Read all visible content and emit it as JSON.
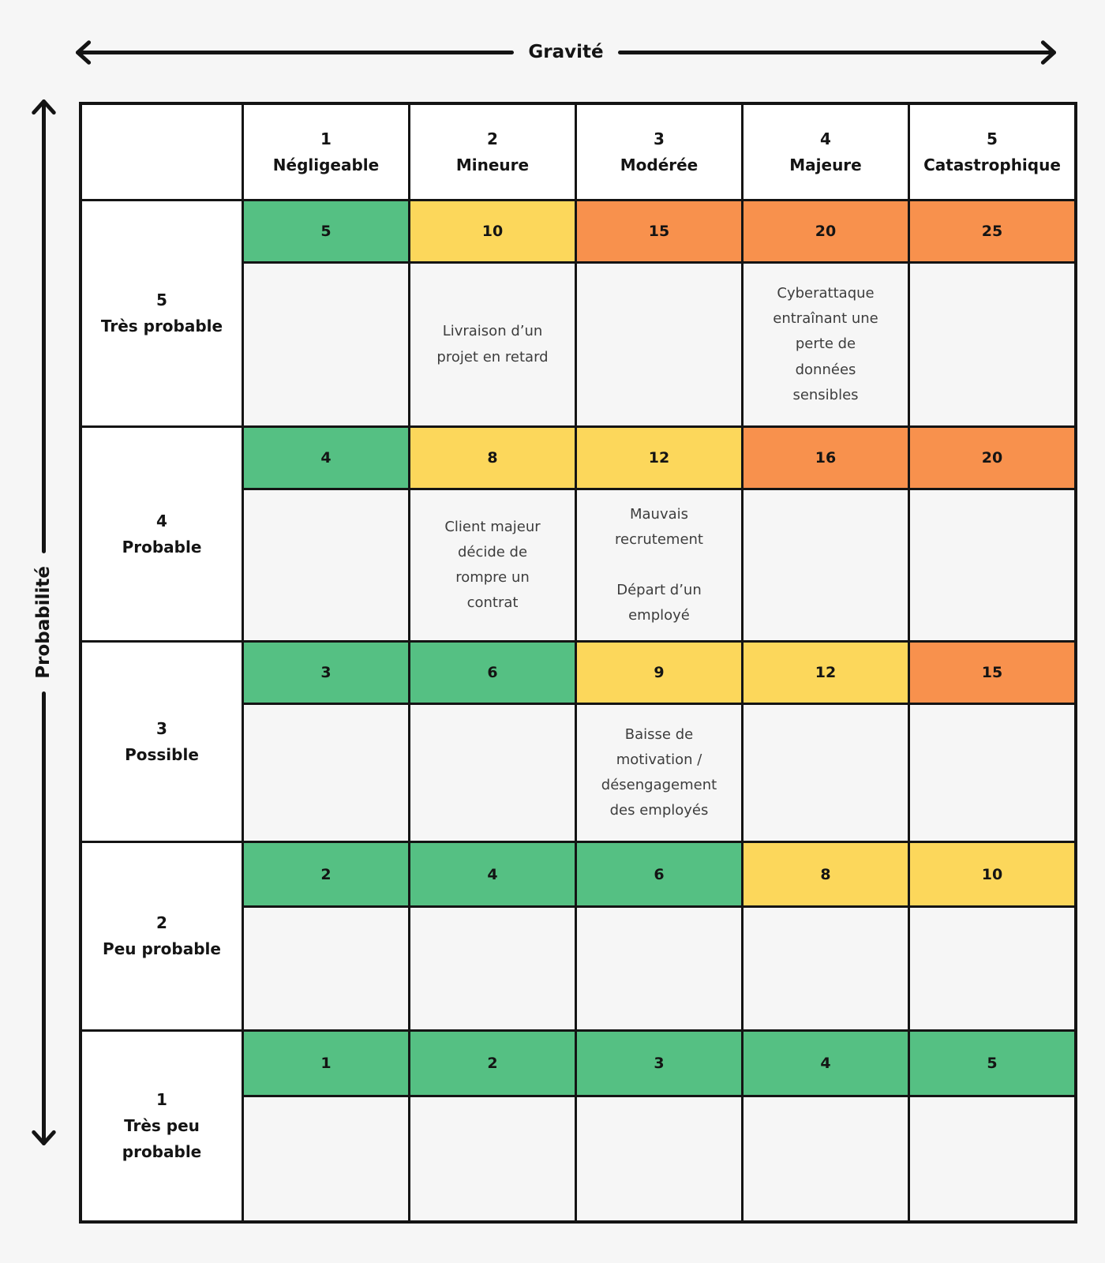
{
  "axes": {
    "x_label": "Gravité",
    "y_label": "Probabilité"
  },
  "colors": {
    "low": "#55C083",
    "medium": "#FCD75B",
    "high": "#F8914D",
    "header_bg": "#ffffff",
    "cell_bg": "#f6f6f6",
    "border": "#141414",
    "page_bg": "#f6f6f6"
  },
  "columns": [
    {
      "num": "1",
      "label": "Négligeable"
    },
    {
      "num": "2",
      "label": "Mineure"
    },
    {
      "num": "3",
      "label": "Modérée"
    },
    {
      "num": "4",
      "label": "Majeure"
    },
    {
      "num": "5",
      "label": "Catastrophique"
    }
  ],
  "rows": [
    {
      "num": "5",
      "label": "Très probable",
      "scores": [
        {
          "value": 5,
          "level": "green"
        },
        {
          "value": 10,
          "level": "yellow"
        },
        {
          "value": 15,
          "level": "orange"
        },
        {
          "value": 20,
          "level": "orange"
        },
        {
          "value": 25,
          "level": "orange"
        }
      ],
      "items": [
        [],
        [
          "Livraison d’un projet en retard"
        ],
        [],
        [
          "Cyberattaque entraînant une perte de données sensibles"
        ],
        []
      ]
    },
    {
      "num": "4",
      "label": "Probable",
      "scores": [
        {
          "value": 4,
          "level": "green"
        },
        {
          "value": 8,
          "level": "yellow"
        },
        {
          "value": 12,
          "level": "yellow"
        },
        {
          "value": 16,
          "level": "orange"
        },
        {
          "value": 20,
          "level": "orange"
        }
      ],
      "items": [
        [],
        [
          "Client majeur décide de rompre un contrat"
        ],
        [
          "Mauvais recrutement",
          "Départ d’un employé"
        ],
        [],
        []
      ]
    },
    {
      "num": "3",
      "label": "Possible",
      "scores": [
        {
          "value": 3,
          "level": "green"
        },
        {
          "value": 6,
          "level": "green"
        },
        {
          "value": 9,
          "level": "yellow"
        },
        {
          "value": 12,
          "level": "yellow"
        },
        {
          "value": 15,
          "level": "orange"
        }
      ],
      "items": [
        [],
        [],
        [
          "Baisse de motivation / désengagement des employés"
        ],
        [],
        []
      ]
    },
    {
      "num": "2",
      "label": "Peu probable",
      "scores": [
        {
          "value": 2,
          "level": "green"
        },
        {
          "value": 4,
          "level": "green"
        },
        {
          "value": 6,
          "level": "green"
        },
        {
          "value": 8,
          "level": "yellow"
        },
        {
          "value": 10,
          "level": "yellow"
        }
      ],
      "items": [
        [],
        [],
        [],
        [],
        []
      ]
    },
    {
      "num": "1",
      "label": "Très peu probable",
      "scores": [
        {
          "value": 1,
          "level": "green"
        },
        {
          "value": 2,
          "level": "green"
        },
        {
          "value": 3,
          "level": "green"
        },
        {
          "value": 4,
          "level": "green"
        },
        {
          "value": 5,
          "level": "green"
        }
      ],
      "items": [
        [],
        [],
        [],
        [],
        []
      ]
    }
  ]
}
